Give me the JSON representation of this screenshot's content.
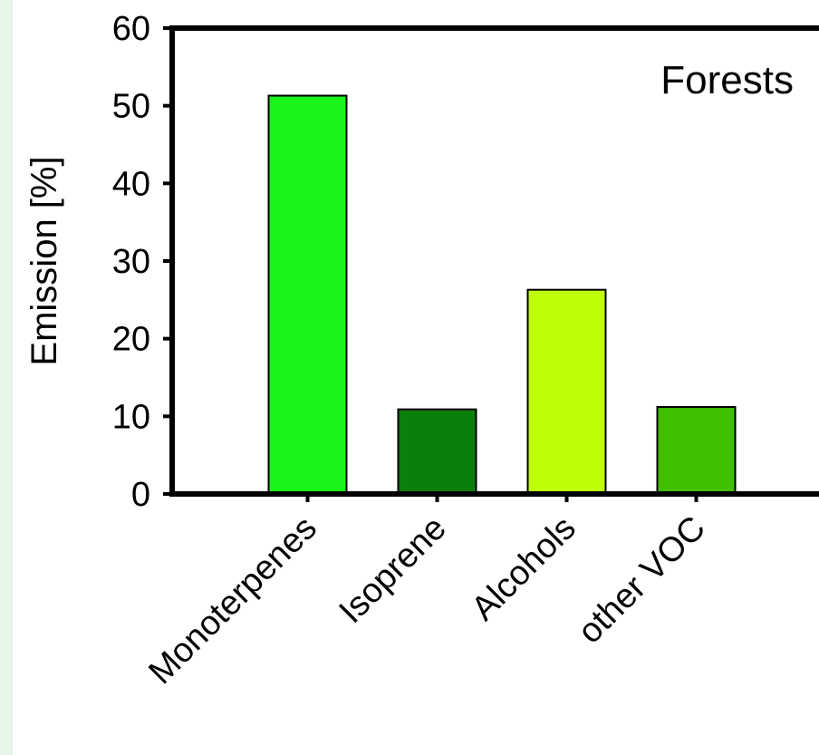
{
  "chart_data": {
    "type": "bar",
    "categories": [
      "Monoterpenes",
      "Isoprene",
      "Alcohols",
      "other VOC"
    ],
    "values": [
      51.3,
      10.9,
      26.3,
      11.2
    ],
    "colors": [
      "#19f519",
      "#0a800a",
      "#c0ff0a",
      "#40c000"
    ],
    "ylabel": "Emission [%]",
    "annotation": "Forests",
    "ylim": [
      0,
      60
    ],
    "yticks": [
      0,
      10,
      20,
      30,
      40,
      50,
      60
    ],
    "grid": false,
    "legend": "none"
  }
}
